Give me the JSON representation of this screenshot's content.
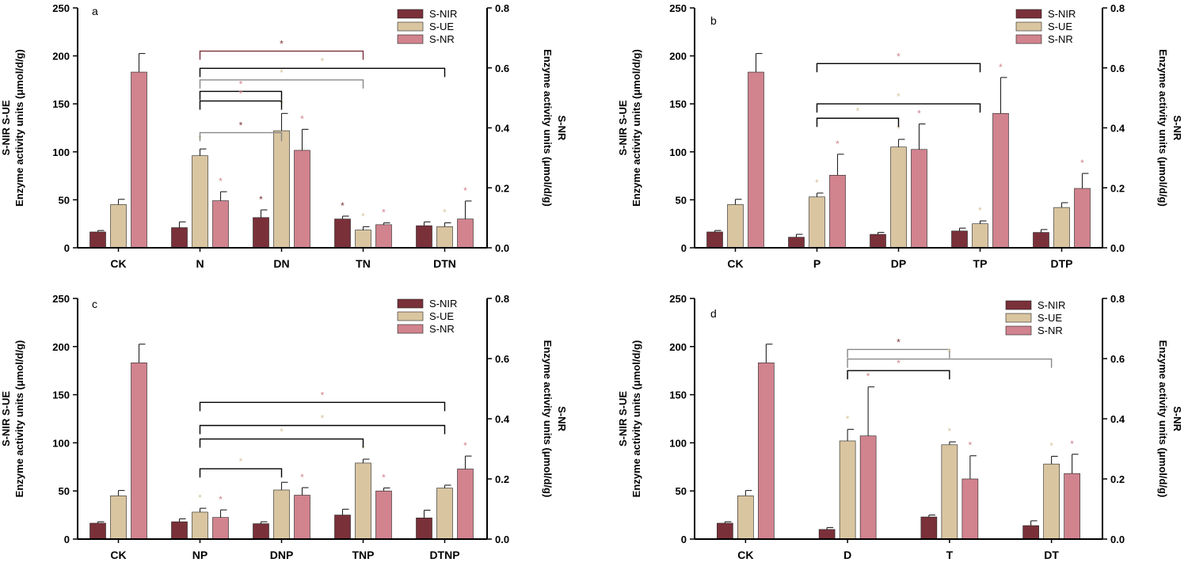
{
  "figure": {
    "legend_position": "top-right",
    "legend": [
      "S-NIR",
      "S-UE",
      "S-NR"
    ],
    "colors": {
      "S-NIR": "#7a3039",
      "S-UE": "#d9c5a0",
      "S-NR": "#d1838e",
      "axis": "#000000",
      "bracket_gray": "#888888"
    }
  },
  "chart_data": [
    {
      "type": "bar",
      "panel_label": "a",
      "categories": [
        "CK",
        "N",
        "DN",
        "TN",
        "DTN"
      ],
      "ylabel": "S-NIR S-UE\nEnzyme activity units (μmol/d/g)",
      "y2label": "S-NR\nEnzyme activity units (μmol/d/g)",
      "ylim": [
        0,
        250
      ],
      "yticks": [
        "0",
        "50",
        "100",
        "150",
        "200",
        "250"
      ],
      "y2lim": [
        0,
        0.8
      ],
      "y2ticks": [
        "0.0",
        "0.2",
        "0.4",
        "0.6",
        "0.8"
      ],
      "series": [
        {
          "name": "S-NIR",
          "axis": "left",
          "values": [
            16.5,
            21,
            31.5,
            30,
            23
          ],
          "errors": [
            1.5,
            6,
            8,
            3,
            4
          ],
          "stars": [
            false,
            false,
            true,
            true,
            false
          ]
        },
        {
          "name": "S-UE",
          "axis": "left",
          "values": [
            45,
            96,
            122,
            18.5,
            22
          ],
          "errors": [
            5.5,
            7,
            18,
            3.5,
            4
          ],
          "stars": [
            false,
            true,
            true,
            true,
            true
          ]
        },
        {
          "name": "S-NR",
          "axis": "right",
          "values": [
            0.586,
            0.157,
            0.325,
            0.077,
            0.096
          ],
          "errors": [
            0.062,
            0.03,
            0.07,
            0.006,
            0.06
          ],
          "stars": [
            false,
            true,
            true,
            true,
            true
          ]
        }
      ],
      "comparisons": [
        {
          "from": "N",
          "to": "TN",
          "y": 205,
          "color": "#7a3039",
          "star_color": "#7a3039"
        },
        {
          "from": "N",
          "to": "DTN",
          "y": 187,
          "color": "#000000",
          "star_color": "#d9c5a0"
        },
        {
          "from": "N",
          "to": "TN",
          "y": 175,
          "color": "#888888",
          "star_color": "#d9c5a0"
        },
        {
          "from": "N",
          "to": "DN",
          "y": 163,
          "color": "#000000",
          "star_color": "#d1838e"
        },
        {
          "from": "N",
          "to": "DN",
          "y": 153,
          "color": "#000000",
          "star_color": "#d1838e"
        },
        {
          "from": "N",
          "to": "DN",
          "y": 120,
          "color": "#888888",
          "star_color": "#7a3039"
        }
      ]
    },
    {
      "type": "bar",
      "panel_label": "b",
      "categories": [
        "CK",
        "P",
        "DP",
        "TP",
        "DTP"
      ],
      "ylabel": "S-NIR S-UE\nEnzyme activity units (μmol/d/g)",
      "y2label": "S-NR\nEnzyme activity units (μmol/d/g)",
      "ylim": [
        0,
        250
      ],
      "yticks": [
        "0",
        "50",
        "100",
        "150",
        "200",
        "250"
      ],
      "y2lim": [
        0,
        0.8
      ],
      "y2ticks": [
        "0.0",
        "0.2",
        "0.4",
        "0.6",
        "0.8"
      ],
      "series": [
        {
          "name": "S-NIR",
          "axis": "left",
          "values": [
            16.5,
            11,
            14,
            17.5,
            16
          ],
          "errors": [
            1.5,
            3,
            2,
            3,
            3
          ],
          "stars": [
            false,
            false,
            false,
            false,
            false
          ]
        },
        {
          "name": "S-UE",
          "axis": "left",
          "values": [
            45,
            53,
            105,
            25,
            42
          ],
          "errors": [
            5.5,
            4,
            8,
            3,
            5
          ],
          "stars": [
            false,
            true,
            true,
            true,
            false
          ]
        },
        {
          "name": "S-NR",
          "axis": "right",
          "values": [
            0.586,
            0.242,
            0.328,
            0.448,
            0.198
          ],
          "errors": [
            0.062,
            0.07,
            0.085,
            0.12,
            0.05
          ],
          "stars": [
            false,
            true,
            true,
            true,
            true
          ]
        }
      ],
      "comparisons": [
        {
          "from": "P",
          "to": "TP",
          "y": 192,
          "color": "#000000",
          "star_color": "#d1838e"
        },
        {
          "from": "P",
          "to": "TP",
          "y": 150,
          "color": "#000000",
          "star_color": "#d9c5a0"
        },
        {
          "from": "P",
          "to": "DP",
          "y": 135,
          "color": "#000000",
          "star_color": "#d9c5a0"
        }
      ]
    },
    {
      "type": "bar",
      "panel_label": "c",
      "categories": [
        "CK",
        "NP",
        "DNP",
        "TNP",
        "DTNP"
      ],
      "ylabel": "S-NIR S-UE\nEnzyme activity units (μmol/d/g)",
      "y2label": "S-NR\nEnzyme activity units (μmol/d/g)",
      "ylim": [
        0,
        250
      ],
      "yticks": [
        "0",
        "50",
        "100",
        "150",
        "200",
        "250"
      ],
      "y2lim": [
        0,
        0.8
      ],
      "y2ticks": [
        "0.0",
        "0.2",
        "0.4",
        "0.6",
        "0.8"
      ],
      "series": [
        {
          "name": "S-NIR",
          "axis": "left",
          "values": [
            16.5,
            18,
            16,
            25,
            22
          ],
          "errors": [
            1.5,
            3,
            2,
            6,
            8
          ],
          "stars": [
            false,
            false,
            false,
            false,
            false
          ]
        },
        {
          "name": "S-UE",
          "axis": "left",
          "values": [
            45,
            28,
            51,
            79,
            53
          ],
          "errors": [
            5.5,
            4,
            8,
            4,
            3
          ],
          "stars": [
            false,
            true,
            false,
            true,
            false
          ]
        },
        {
          "name": "S-NR",
          "axis": "right",
          "values": [
            0.586,
            0.072,
            0.146,
            0.16,
            0.233
          ],
          "errors": [
            0.062,
            0.025,
            0.025,
            0.01,
            0.043
          ],
          "stars": [
            false,
            true,
            true,
            true,
            true
          ]
        }
      ],
      "comparisons": [
        {
          "from": "NP",
          "to": "DTNP",
          "y": 142,
          "color": "#000000",
          "star_color": "#d1838e"
        },
        {
          "from": "NP",
          "to": "DTNP",
          "y": 118,
          "color": "#000000",
          "star_color": "#d9c5a0"
        },
        {
          "from": "NP",
          "to": "TNP",
          "y": 104,
          "color": "#000000",
          "star_color": "#d9c5a0"
        },
        {
          "from": "NP",
          "to": "DNP",
          "y": 73,
          "color": "#000000",
          "star_color": "#d9c5a0"
        }
      ]
    },
    {
      "type": "bar",
      "panel_label": "d",
      "categories": [
        "CK",
        "D",
        "T",
        "DT"
      ],
      "ylabel": "S-NIR S-UE\nEnzyme activity units (μmol/d/g)",
      "y2label": "S-NR\nEnzyme activity units (μmol/d/g)",
      "ylim": [
        0,
        250
      ],
      "yticks": [
        "0",
        "50",
        "100",
        "150",
        "200",
        "250"
      ],
      "y2lim": [
        0,
        0.8
      ],
      "y2ticks": [
        "0.0",
        "0.2",
        "0.4",
        "0.6",
        "0.8"
      ],
      "series": [
        {
          "name": "S-NIR",
          "axis": "left",
          "values": [
            16.5,
            10,
            23,
            14
          ],
          "errors": [
            1.5,
            2,
            2,
            5
          ],
          "stars": [
            false,
            false,
            false,
            false
          ]
        },
        {
          "name": "S-UE",
          "axis": "left",
          "values": [
            45,
            102,
            98,
            78
          ],
          "errors": [
            5.5,
            12,
            3,
            8
          ],
          "stars": [
            false,
            true,
            true,
            true
          ]
        },
        {
          "name": "S-NR",
          "axis": "right",
          "values": [
            0.586,
            0.343,
            0.2,
            0.218
          ],
          "errors": [
            0.062,
            0.163,
            0.077,
            0.064
          ],
          "stars": [
            false,
            true,
            true,
            true
          ]
        }
      ],
      "comparisons": [
        {
          "from": "D",
          "to": "T",
          "y": 197,
          "color": "#888888",
          "star_color": "#7a3039"
        },
        {
          "from": "D",
          "to": "DT",
          "y": 187,
          "color": "#888888",
          "star_color": "#d9c5a0"
        },
        {
          "from": "D",
          "to": "T",
          "y": 175,
          "color": "#000000",
          "star_color": "#d1838e"
        }
      ]
    }
  ]
}
